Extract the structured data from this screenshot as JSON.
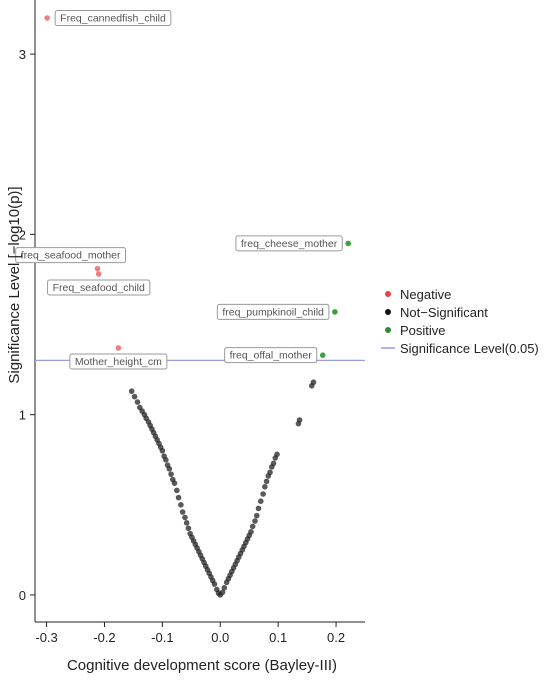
{
  "chart_data": {
    "type": "scatter",
    "title": "",
    "xlabel": "Cognitive development score (Bayley-III)",
    "ylabel": "Significance Level [−log10(p)]",
    "xlim": [
      -0.32,
      0.25
    ],
    "ylim": [
      -0.15,
      3.3
    ],
    "x_ticks": [
      -0.3,
      -0.2,
      -0.1,
      0.0,
      0.1,
      0.2
    ],
    "x_tick_labels": [
      "-0.3",
      "-0.2",
      "-0.1",
      "0.0",
      "0.1",
      "0.2"
    ],
    "y_ticks": [
      0,
      1,
      2,
      3
    ],
    "y_tick_labels": [
      "0",
      "1",
      "2",
      "3"
    ],
    "grid": false,
    "significance_line": {
      "y": 1.301,
      "color": "#9999ee"
    },
    "legend": {
      "placement": "right",
      "entries": [
        {
          "label": "Negative",
          "color": "#e8414a",
          "kind": "point"
        },
        {
          "label": "Not−Significant",
          "color": "#111111",
          "kind": "point"
        },
        {
          "label": "Positive",
          "color": "#2e8b2e",
          "kind": "point"
        },
        {
          "label": "Significance Level(0.05)",
          "color": "#9999ee",
          "kind": "line"
        }
      ]
    },
    "series": [
      {
        "name": "Negative",
        "color": "#f08080",
        "points": [
          {
            "x": -0.299,
            "y": 3.2
          },
          {
            "x": -0.212,
            "y": 1.81
          },
          {
            "x": -0.21,
            "y": 1.78
          },
          {
            "x": -0.176,
            "y": 1.37
          }
        ]
      },
      {
        "name": "Not−Significant",
        "color": "#222222",
        "points": [
          {
            "x": 0.0,
            "y": 0.0
          },
          {
            "x": -0.003,
            "y": 0.01
          },
          {
            "x": 0.004,
            "y": 0.015
          },
          {
            "x": -0.006,
            "y": 0.03
          },
          {
            "x": 0.007,
            "y": 0.04
          },
          {
            "x": -0.01,
            "y": 0.06
          },
          {
            "x": 0.011,
            "y": 0.07
          },
          {
            "x": -0.013,
            "y": 0.08
          },
          {
            "x": 0.014,
            "y": 0.09
          },
          {
            "x": -0.016,
            "y": 0.1
          },
          {
            "x": 0.017,
            "y": 0.11
          },
          {
            "x": -0.019,
            "y": 0.12
          },
          {
            "x": 0.02,
            "y": 0.13
          },
          {
            "x": -0.022,
            "y": 0.14
          },
          {
            "x": 0.023,
            "y": 0.15
          },
          {
            "x": -0.025,
            "y": 0.16
          },
          {
            "x": 0.026,
            "y": 0.17
          },
          {
            "x": -0.028,
            "y": 0.18
          },
          {
            "x": 0.029,
            "y": 0.19
          },
          {
            "x": -0.031,
            "y": 0.2
          },
          {
            "x": 0.032,
            "y": 0.21
          },
          {
            "x": -0.034,
            "y": 0.22
          },
          {
            "x": 0.035,
            "y": 0.23
          },
          {
            "x": -0.037,
            "y": 0.24
          },
          {
            "x": 0.038,
            "y": 0.25
          },
          {
            "x": -0.04,
            "y": 0.26
          },
          {
            "x": 0.041,
            "y": 0.27
          },
          {
            "x": -0.043,
            "y": 0.28
          },
          {
            "x": 0.044,
            "y": 0.29
          },
          {
            "x": -0.046,
            "y": 0.3
          },
          {
            "x": 0.047,
            "y": 0.31
          },
          {
            "x": -0.049,
            "y": 0.32
          },
          {
            "x": 0.05,
            "y": 0.33
          },
          {
            "x": -0.052,
            "y": 0.34
          },
          {
            "x": 0.053,
            "y": 0.35
          },
          {
            "x": -0.055,
            "y": 0.37
          },
          {
            "x": 0.056,
            "y": 0.38
          },
          {
            "x": -0.058,
            "y": 0.4
          },
          {
            "x": 0.06,
            "y": 0.41
          },
          {
            "x": -0.061,
            "y": 0.43
          },
          {
            "x": 0.063,
            "y": 0.44
          },
          {
            "x": -0.065,
            "y": 0.46
          },
          {
            "x": 0.066,
            "y": 0.48
          },
          {
            "x": -0.068,
            "y": 0.5
          },
          {
            "x": 0.07,
            "y": 0.52
          },
          {
            "x": -0.072,
            "y": 0.54
          },
          {
            "x": 0.074,
            "y": 0.56
          },
          {
            "x": -0.075,
            "y": 0.58
          },
          {
            "x": 0.077,
            "y": 0.6
          },
          {
            "x": -0.079,
            "y": 0.62
          },
          {
            "x": 0.08,
            "y": 0.63
          },
          {
            "x": -0.082,
            "y": 0.64
          },
          {
            "x": 0.083,
            "y": 0.66
          },
          {
            "x": -0.085,
            "y": 0.67
          },
          {
            "x": 0.086,
            "y": 0.68
          },
          {
            "x": -0.088,
            "y": 0.7
          },
          {
            "x": 0.089,
            "y": 0.71
          },
          {
            "x": -0.091,
            "y": 0.72
          },
          {
            "x": 0.092,
            "y": 0.73
          },
          {
            "x": -0.094,
            "y": 0.75
          },
          {
            "x": 0.095,
            "y": 0.76
          },
          {
            "x": -0.097,
            "y": 0.77
          },
          {
            "x": 0.098,
            "y": 0.78
          },
          {
            "x": -0.1,
            "y": 0.8
          },
          {
            "x": -0.103,
            "y": 0.82
          },
          {
            "x": -0.106,
            "y": 0.84
          },
          {
            "x": -0.109,
            "y": 0.86
          },
          {
            "x": -0.112,
            "y": 0.88
          },
          {
            "x": -0.115,
            "y": 0.9
          },
          {
            "x": -0.118,
            "y": 0.92
          },
          {
            "x": -0.121,
            "y": 0.94
          },
          {
            "x": -0.124,
            "y": 0.96
          },
          {
            "x": -0.128,
            "y": 0.98
          },
          {
            "x": -0.131,
            "y": 1.0
          },
          {
            "x": -0.135,
            "y": 1.02
          },
          {
            "x": -0.139,
            "y": 1.04
          },
          {
            "x": -0.143,
            "y": 1.07
          },
          {
            "x": -0.148,
            "y": 1.1
          },
          {
            "x": -0.153,
            "y": 1.13
          },
          {
            "x": 0.135,
            "y": 0.95
          },
          {
            "x": 0.137,
            "y": 0.97
          },
          {
            "x": 0.158,
            "y": 1.16
          },
          {
            "x": 0.161,
            "y": 1.18
          }
        ]
      },
      {
        "name": "Positive",
        "color": "#3fa03f",
        "points": [
          {
            "x": 0.221,
            "y": 1.95
          },
          {
            "x": 0.198,
            "y": 1.57
          },
          {
            "x": 0.177,
            "y": 1.33
          }
        ]
      }
    ],
    "annotations": [
      {
        "text": "Freq_cannedfish_child",
        "x": -0.299,
        "y": 3.2,
        "anchor": "right"
      },
      {
        "text": "freq_seafood_mother",
        "x": -0.212,
        "y": 1.81,
        "anchor": "above-left"
      },
      {
        "text": "Freq_seafood_child",
        "x": -0.21,
        "y": 1.78,
        "anchor": "below"
      },
      {
        "text": "Mother_height_cm",
        "x": -0.176,
        "y": 1.37,
        "anchor": "below"
      },
      {
        "text": "freq_cheese_mother",
        "x": 0.221,
        "y": 1.95,
        "anchor": "left"
      },
      {
        "text": "freq_pumpkinoil_child",
        "x": 0.198,
        "y": 1.57,
        "anchor": "left"
      },
      {
        "text": "freq_offal_mother",
        "x": 0.177,
        "y": 1.33,
        "anchor": "left"
      }
    ]
  }
}
